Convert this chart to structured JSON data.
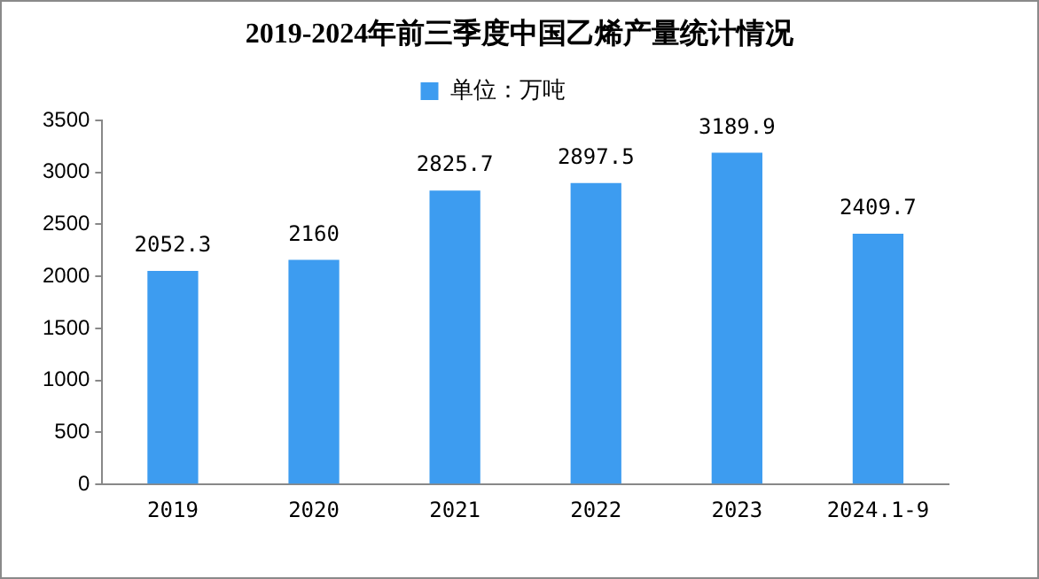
{
  "chart_data": {
    "type": "bar",
    "title": "2019-2024年前三季度中国乙烯产量统计情况",
    "categories": [
      "2019",
      "2020",
      "2021",
      "2022",
      "2023",
      "2024.1-9"
    ],
    "series": [
      {
        "name": "单位：万吨",
        "color": "#3d9cf0",
        "values": [
          2052.3,
          2160,
          2825.7,
          2897.5,
          3189.9,
          2409.7
        ]
      }
    ],
    "ylim": [
      0,
      3500
    ],
    "yticks": [
      0,
      500,
      1000,
      1500,
      2000,
      2500,
      3000,
      3500
    ],
    "grid": false,
    "legend": "top",
    "data_labels": true
  }
}
